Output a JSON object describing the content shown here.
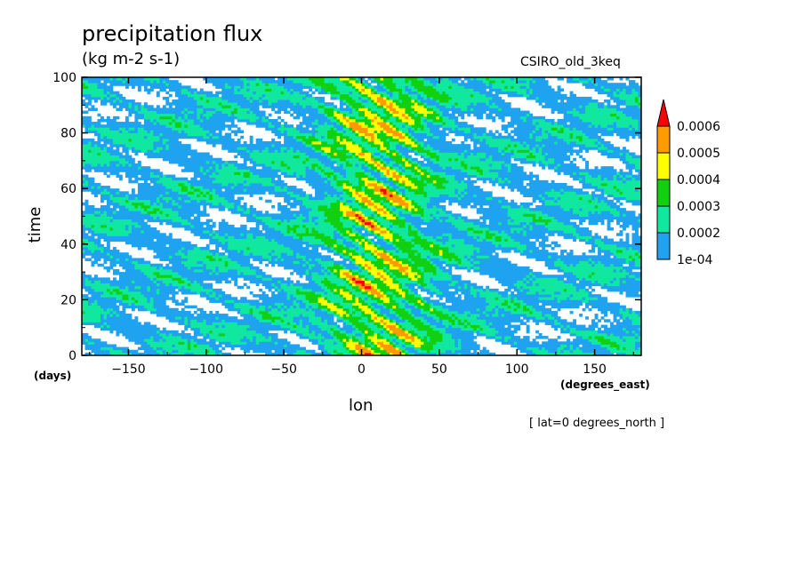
{
  "chart_data": {
    "type": "heatmap",
    "title": "precipitation flux",
    "subtitle": "(kg m-2 s-1)",
    "model_label": "CSIRO_old_3keq",
    "xlabel": "lon",
    "xunit": "(degrees_east)",
    "ylabel": "time",
    "yunit": "(days)",
    "note": "[ lat=0 degrees_north ]",
    "xlim": [
      -180,
      180
    ],
    "ylim": [
      0,
      100
    ],
    "x_ticks": [
      -150,
      -100,
      -50,
      0,
      50,
      100,
      150
    ],
    "x_tick_labels": [
      "−150",
      "−100",
      "−50",
      "0",
      "50",
      "100",
      "150"
    ],
    "y_ticks": [
      0,
      20,
      40,
      60,
      80,
      100
    ],
    "y_tick_labels": [
      "0",
      "20",
      "40",
      "60",
      "80",
      "100"
    ],
    "colorbar": {
      "levels": [
        "1e-04",
        "0.0002",
        "0.0003",
        "0.0004",
        "0.0005",
        "0.0006"
      ],
      "level_values": [
        0.0001,
        0.0002,
        0.0003,
        0.0004,
        0.0005,
        0.0006
      ],
      "colors": [
        "#1fa3f0",
        "#10e8a0",
        "#10d010",
        "#ffff00",
        "#ff9a00",
        "#ff0000"
      ],
      "extends": "max"
    },
    "background_color": "#ffffff"
  }
}
